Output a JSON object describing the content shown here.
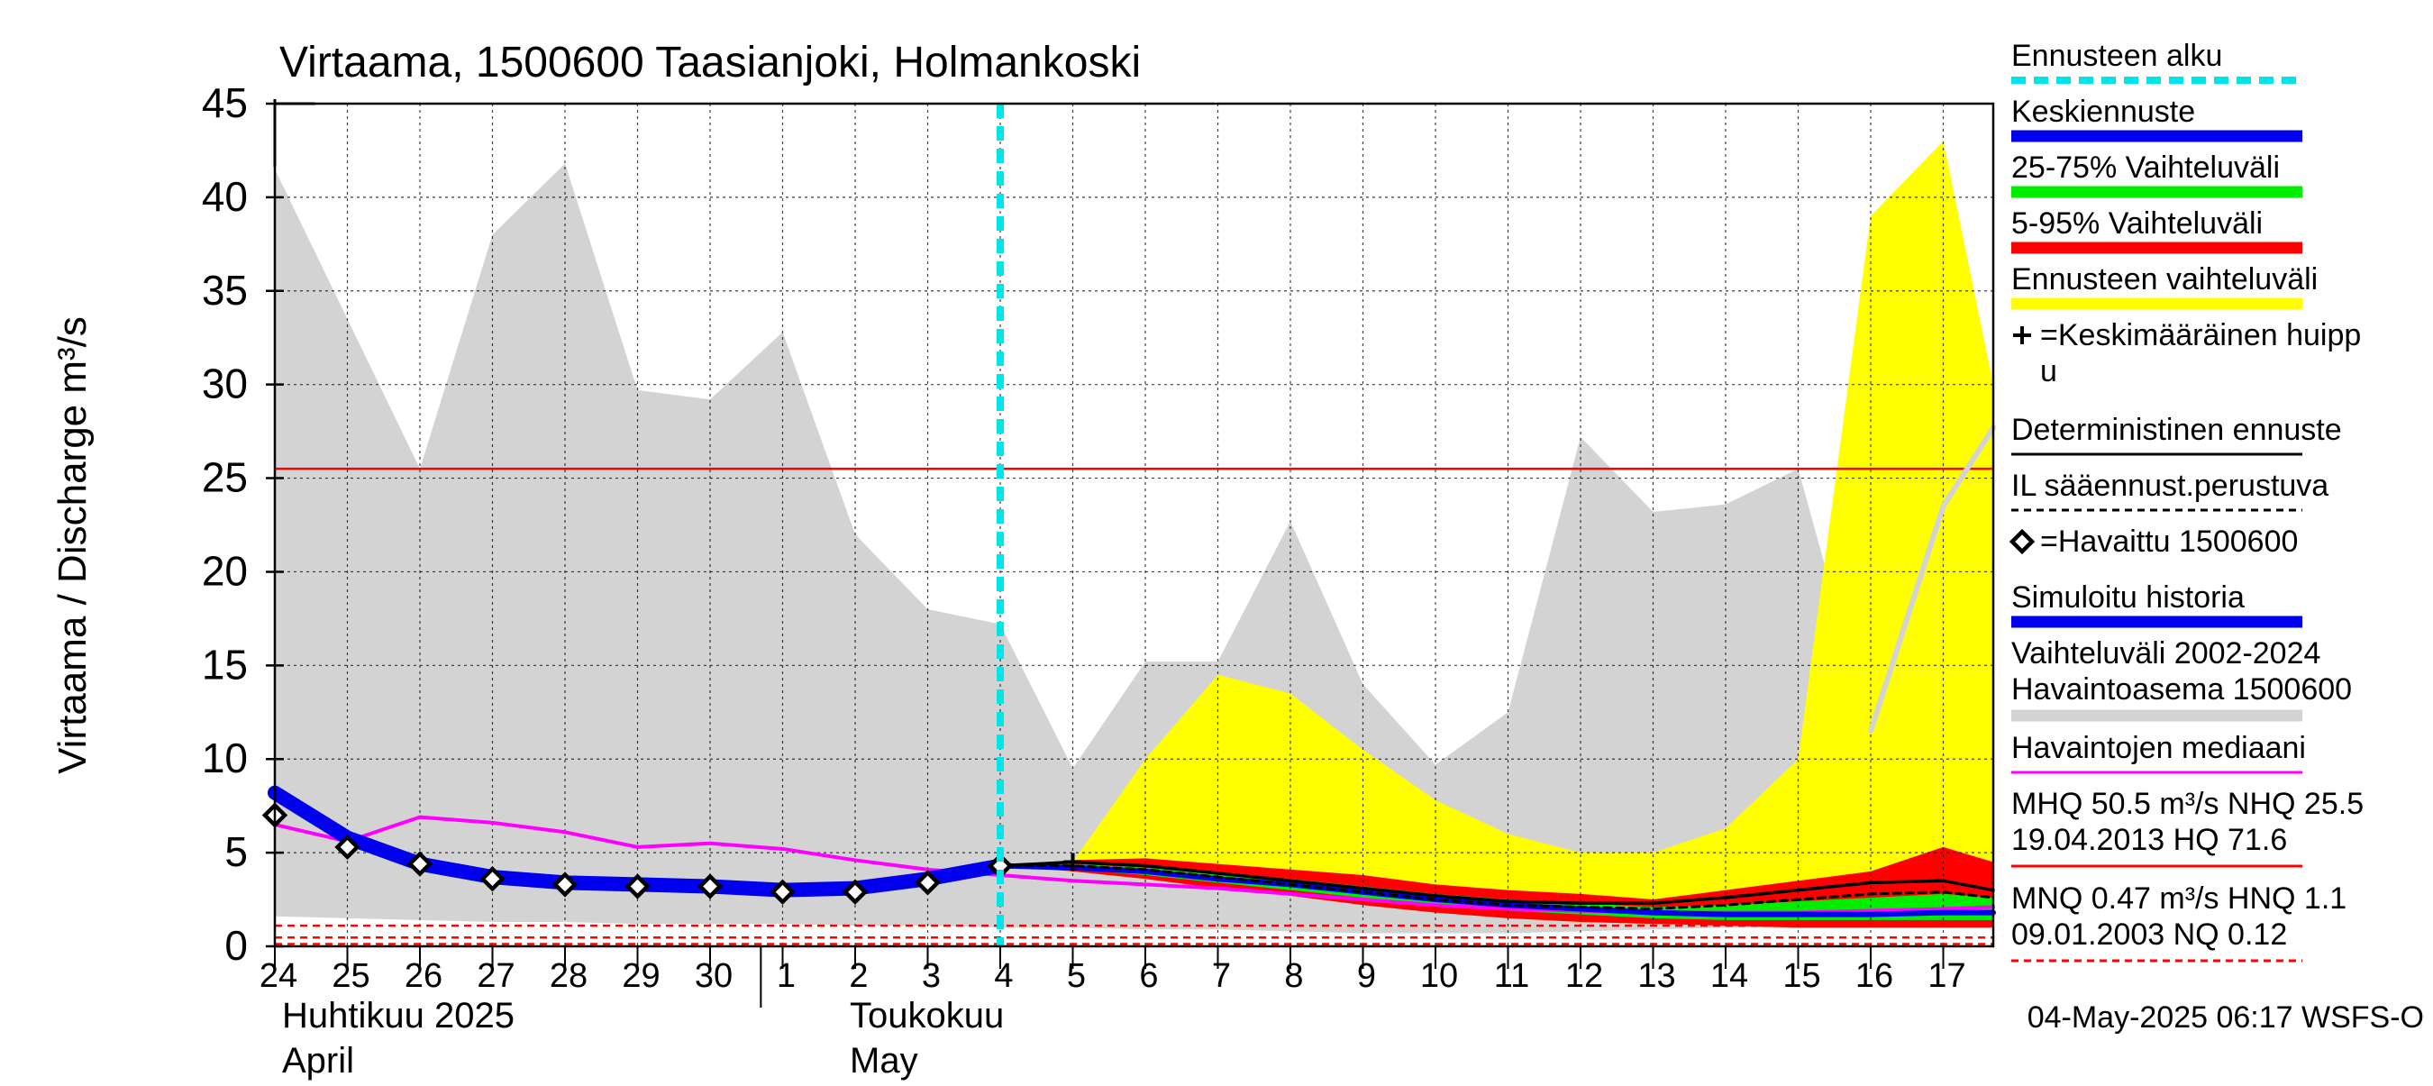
{
  "chart_data": {
    "type": "area",
    "title": "Virtaama, 1500600 Taasianjoki, Holmankoski",
    "ylabel": "Virtaama / Discharge    m³/s",
    "ylim": [
      0,
      45
    ],
    "yticks": [
      0,
      5,
      10,
      15,
      20,
      25,
      30,
      35,
      40,
      45
    ],
    "x_day_labels": [
      "24",
      "25",
      "26",
      "27",
      "28",
      "29",
      "30",
      "1",
      "2",
      "3",
      "4",
      "5",
      "6",
      "7",
      "8",
      "9",
      "10",
      "11",
      "12",
      "13",
      "14",
      "15",
      "16",
      "17"
    ],
    "month_labels": [
      {
        "fi": "Huhtikuu  2025",
        "en": "April"
      },
      {
        "fi": "Toukokuu",
        "en": "May"
      }
    ],
    "forecast_start_index": 10.0,
    "series": [
      {
        "name": "Vaihteluväli 2002-2024 Havaintoasema 1500600",
        "color": "#d3d3d3",
        "upper": [
          41.5,
          33.5,
          25.5,
          38,
          41.8,
          29.7,
          29.2,
          32.8,
          22,
          18,
          17.2,
          9.5,
          15.2,
          15.2,
          22.7,
          14,
          9.7,
          12.5,
          27.2,
          23.2,
          23.6,
          25.5,
          11.5,
          23.5,
          27.7
        ],
        "lower": [
          1.6,
          1.5,
          1.4,
          1.3,
          1.3,
          1.2,
          1.2,
          1.2,
          1.1,
          1.1,
          1.0,
          1.0,
          0.9,
          0.9,
          0.8,
          0.7,
          0.7,
          0.7,
          0.8,
          0.9,
          1.0,
          1.0,
          1.1,
          1.1,
          1.2
        ]
      },
      {
        "name": "Ennusteen vaihteluväli",
        "color": "#ffff00",
        "start_index": 10,
        "upper": [
          4.3,
          4.5,
          10,
          14.5,
          13.5,
          10.5,
          7.8,
          6,
          5,
          5,
          6.3,
          10,
          39,
          43,
          30
        ],
        "lower": [
          4.3,
          4.0,
          3.6,
          3.2,
          2.8,
          2.3,
          1.9,
          1.5,
          1.3,
          1.2,
          1.1,
          1.0,
          1.0,
          1.0,
          1.0
        ]
      },
      {
        "name": "5-95% Vaihteluväli",
        "color": "#ff0000",
        "start_index": 10,
        "upper": [
          4.3,
          4.6,
          4.7,
          4.4,
          4.1,
          3.8,
          3.3,
          3.0,
          2.8,
          2.5,
          3.0,
          3.5,
          4.0,
          5.3,
          4.5
        ],
        "lower": [
          4.3,
          4.0,
          3.6,
          3.1,
          2.7,
          2.2,
          1.8,
          1.5,
          1.3,
          1.2,
          1.1,
          1.0,
          1.0,
          1.0,
          1.0
        ]
      },
      {
        "name": "25-75% Vaihteluväli",
        "color": "#00ee00",
        "start_index": 10,
        "upper": [
          4.3,
          4.4,
          4.2,
          3.9,
          3.6,
          3.2,
          2.8,
          2.5,
          2.3,
          2.1,
          2.2,
          2.4,
          2.6,
          2.8,
          2.6
        ],
        "lower": [
          4.3,
          4.1,
          3.8,
          3.4,
          3.0,
          2.6,
          2.2,
          1.9,
          1.7,
          1.5,
          1.4,
          1.4,
          1.4,
          1.4,
          1.4
        ]
      },
      {
        "name": "Keskiennuste",
        "color": "#0000ee",
        "start_index": 10,
        "values": [
          4.3,
          4.2,
          4.0,
          3.6,
          3.3,
          2.9,
          2.5,
          2.2,
          2.0,
          1.8,
          1.7,
          1.7,
          1.7,
          1.8,
          1.8
        ]
      },
      {
        "name": "Deterministinen ennuste",
        "color": "#000000",
        "start_index": 10,
        "values": [
          4.3,
          4.5,
          4.3,
          3.9,
          3.5,
          3.1,
          2.7,
          2.4,
          2.3,
          2.3,
          2.6,
          3.0,
          3.4,
          3.5,
          3.0
        ]
      },
      {
        "name": "IL sääennust.perustuva",
        "color": "#000000",
        "dashed": true,
        "start_index": 10,
        "values": [
          4.3,
          4.3,
          4.1,
          3.7,
          3.3,
          2.9,
          2.5,
          2.2,
          2.1,
          2.0,
          2.2,
          2.5,
          2.8,
          2.9,
          2.6
        ]
      },
      {
        "name": "Simuloitu historia",
        "color": "#0000ee",
        "values": [
          8.2,
          5.8,
          4.4,
          3.7,
          3.4,
          3.3,
          3.2,
          3.0,
          3.1,
          3.6,
          4.3
        ]
      },
      {
        "name": "Havaintojen mediaani",
        "color": "#ff00ff",
        "values": [
          6.5,
          5.6,
          6.9,
          6.6,
          6.1,
          5.3,
          5.5,
          5.2,
          4.6,
          4.1,
          3.8,
          3.5,
          3.3,
          3.1,
          2.8,
          2.5,
          2.2,
          2.0,
          1.9,
          1.8,
          1.8,
          1.8,
          1.9,
          2.0,
          2.1
        ]
      },
      {
        "name": "Havaittu 1500600",
        "values": [
          7.0,
          5.3,
          4.4,
          3.6,
          3.3,
          3.2,
          3.2,
          2.9,
          2.9,
          3.4,
          4.3
        ]
      },
      {
        "name": "Simuloitu historia (harmaa jatke)",
        "color": "#d3d3d3",
        "start_index": 22,
        "values": [
          11.5,
          23.5,
          27.7
        ]
      }
    ],
    "mean_peak_marker": {
      "index": 11,
      "value": 4.5
    },
    "reference_lines": [
      {
        "label": "NHQ",
        "value": 25.5,
        "color": "#ff0000",
        "dashed": false
      },
      {
        "label": "MNQ",
        "value": 0.47,
        "color": "#ff0000",
        "dashed": true
      },
      {
        "label": "HNQ",
        "value": 1.1,
        "color": "#ff0000",
        "dashed": true
      },
      {
        "label": "NQ",
        "value": 0.12,
        "color": "#ff0000",
        "dashed": true
      }
    ],
    "legend": [
      {
        "label": "Ennusteen alku",
        "color": "#00e5e5",
        "style": "dashed-thick"
      },
      {
        "label": "Keskiennuste",
        "color": "#0000ee",
        "style": "thick"
      },
      {
        "label": "25-75% Vaihteluväli",
        "color": "#00ee00",
        "style": "thick"
      },
      {
        "label": "5-95% Vaihteluväli",
        "color": "#ff0000",
        "style": "thick"
      },
      {
        "label": "Ennusteen vaihteluväli",
        "color": "#ffff00",
        "style": "thick"
      },
      {
        "label": "=Keskimääräinen huipp",
        "label2": "u",
        "color": "#000000",
        "style": "plus"
      },
      {
        "label": "Deterministinen ennuste",
        "color": "#000000",
        "style": "thin"
      },
      {
        "label": "IL sääennust.perustuva",
        "color": "#000000",
        "style": "dashed-thin"
      },
      {
        "label": "=Havaittu 1500600",
        "color": "#000000",
        "style": "diamond"
      },
      {
        "label": "Simuloitu historia",
        "color": "#0000ee",
        "style": "thick"
      },
      {
        "label": "Vaihteluväli 2002-2024",
        "label2": " Havaintoasema 1500600",
        "color": "#d3d3d3",
        "style": "thick"
      },
      {
        "label": "Havaintojen mediaani",
        "color": "#ff00ff",
        "style": "thin"
      },
      {
        "label": "MHQ 50.5 m³/s NHQ 25.5",
        "label2": "19.04.2013 HQ 71.6",
        "color": "#ff0000",
        "style": "thin"
      },
      {
        "label": "MNQ 0.47 m³/s HNQ  1.1",
        "label2": "09.01.2003 NQ 0.12",
        "color": "#ff0000",
        "style": "dashed-thin"
      }
    ],
    "footer": "04-May-2025 06:17 WSFS-O"
  }
}
